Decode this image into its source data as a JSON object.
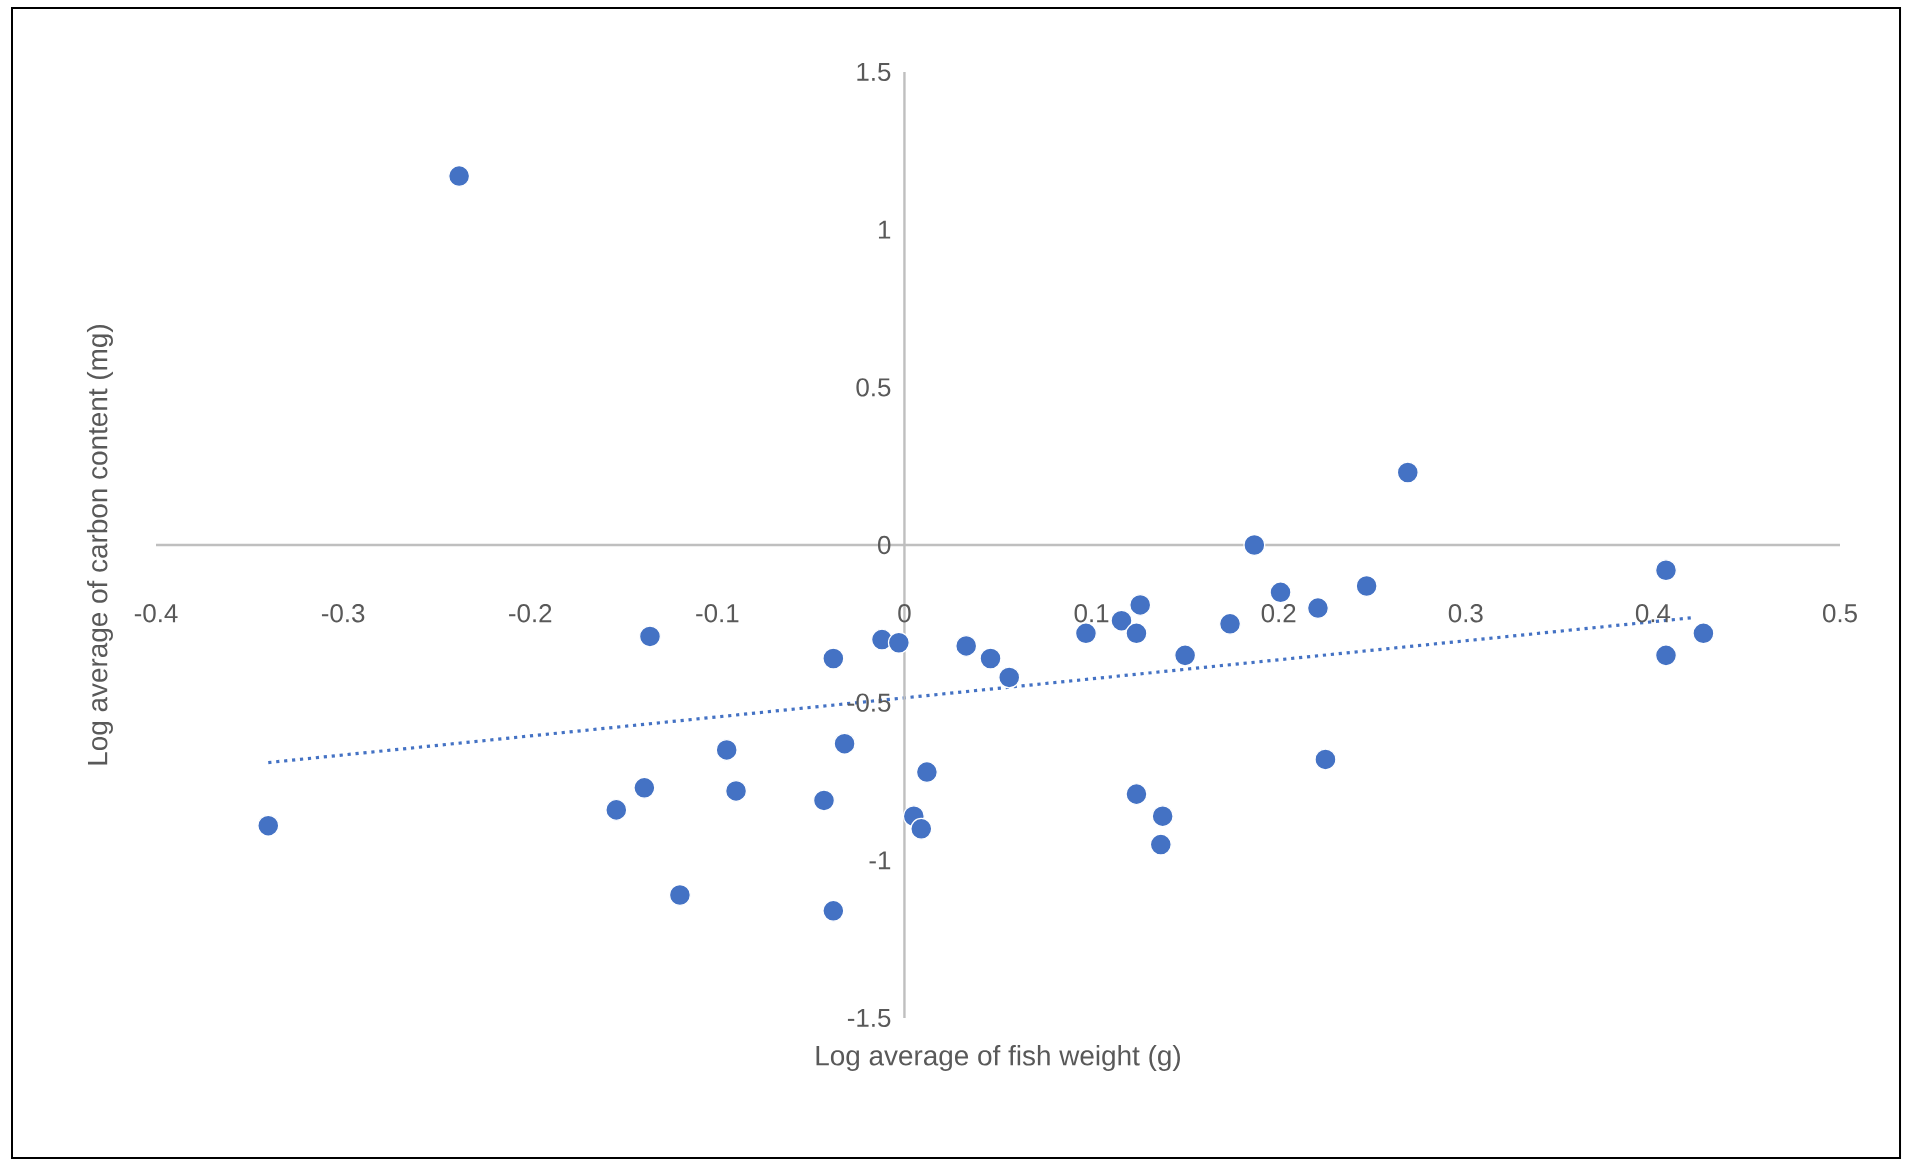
{
  "chart_data": {
    "type": "scatter",
    "xlabel": "Log average of fish weight (g)",
    "ylabel": "Log average of carbon content (mg)",
    "xlim": [
      -0.4,
      0.5
    ],
    "ylim": [
      -1.5,
      1.5
    ],
    "xticks": [
      -0.4,
      -0.3,
      -0.2,
      -0.1,
      0,
      0.1,
      0.2,
      0.3,
      0.4,
      0.5
    ],
    "yticks": [
      -1.5,
      -1,
      -0.5,
      0,
      0.5,
      1,
      1.5
    ],
    "grid": false,
    "legend": false,
    "series": [
      {
        "type": "scatter",
        "color": "#4472c4",
        "marker": "circle",
        "x": [
          -0.238,
          -0.34,
          -0.136,
          -0.154,
          -0.139,
          -0.095,
          -0.09,
          -0.12,
          -0.038,
          -0.032,
          -0.043,
          -0.038,
          -0.012,
          -0.003,
          0.005,
          0.009,
          0.012,
          0.033,
          0.046,
          0.056,
          0.097,
          0.116,
          0.126,
          0.124,
          0.15,
          0.124,
          0.138,
          0.137,
          0.174,
          0.187,
          0.201,
          0.221,
          0.225,
          0.247,
          0.269,
          0.407,
          0.407,
          0.427
        ],
        "values": [
          1.17,
          -0.89,
          -0.29,
          -0.84,
          -0.77,
          -0.65,
          -0.78,
          -1.11,
          -0.36,
          -0.63,
          -0.81,
          -1.16,
          -0.3,
          -0.31,
          -0.86,
          -0.9,
          -0.72,
          -0.32,
          -0.36,
          -0.42,
          -0.28,
          -0.24,
          -0.19,
          -0.28,
          -0.35,
          -0.79,
          -0.86,
          -0.95,
          -0.25,
          0.0,
          -0.15,
          -0.2,
          -0.68,
          -0.13,
          0.23,
          -0.08,
          -0.35,
          -0.28
        ]
      },
      {
        "type": "line",
        "color": "#4472c4",
        "marker": "none",
        "line_style": "dotted",
        "x": [
          -0.34,
          0.422
        ],
        "values": [
          -0.69,
          -0.23
        ]
      }
    ]
  }
}
